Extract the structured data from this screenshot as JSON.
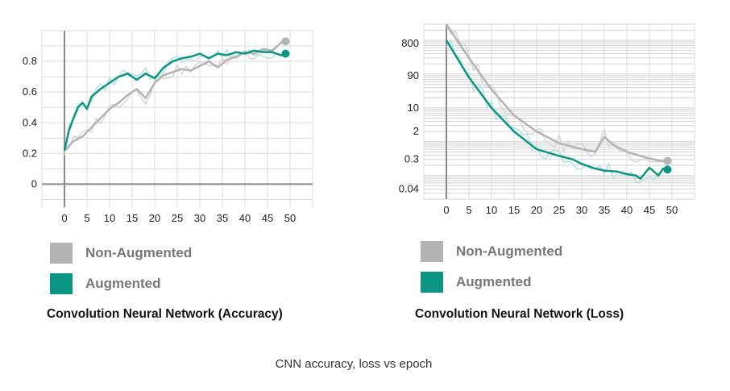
{
  "caption": "CNN accuracy, loss vs epoch",
  "colors": {
    "non_augmented": "#b3b3b3",
    "augmented": "#0b9683",
    "non_augmented_raw": "#d6d6d6",
    "augmented_raw": "#b6e2dc"
  },
  "chart_data": [
    {
      "type": "line",
      "title": "Convolution Neural Network (Accuracy)",
      "xlabel": "",
      "ylabel": "",
      "xlim": [
        -5,
        55
      ],
      "ylim": [
        -0.15,
        1.0
      ],
      "x_ticks": [
        0,
        5,
        10,
        15,
        20,
        25,
        30,
        35,
        40,
        45,
        50
      ],
      "y_ticks": [
        0,
        0.2,
        0.4,
        0.6,
        0.8
      ],
      "y_tick_labels": [
        "0",
        "0.2",
        "0.4",
        "0.6",
        "0.8"
      ],
      "x_tick_labels": [
        "0",
        "5",
        "10",
        "15",
        "20",
        "25",
        "30",
        "35",
        "40",
        "45",
        "50"
      ],
      "grid": true,
      "legend": [
        "Non-Augmented",
        "Augmented"
      ],
      "legend_position": "below",
      "series": [
        {
          "name": "Non-Augmented",
          "x": [
            0,
            2,
            4,
            6,
            8,
            10,
            12,
            14,
            16,
            18,
            20,
            22,
            24,
            26,
            28,
            30,
            32,
            34,
            36,
            38,
            40,
            42,
            44,
            46,
            48,
            49
          ],
          "values": [
            0.22,
            0.28,
            0.31,
            0.37,
            0.43,
            0.49,
            0.53,
            0.58,
            0.62,
            0.56,
            0.66,
            0.71,
            0.73,
            0.75,
            0.74,
            0.77,
            0.8,
            0.76,
            0.81,
            0.83,
            0.86,
            0.85,
            0.88,
            0.87,
            0.92,
            0.93
          ]
        },
        {
          "name": "Augmented",
          "x": [
            0,
            1,
            2,
            3,
            4,
            5,
            6,
            8,
            10,
            12,
            14,
            16,
            18,
            20,
            22,
            24,
            26,
            28,
            30,
            32,
            34,
            36,
            38,
            40,
            42,
            44,
            46,
            48,
            49
          ],
          "values": [
            0.22,
            0.35,
            0.43,
            0.5,
            0.53,
            0.49,
            0.57,
            0.62,
            0.66,
            0.7,
            0.72,
            0.68,
            0.72,
            0.69,
            0.76,
            0.8,
            0.82,
            0.83,
            0.85,
            0.82,
            0.85,
            0.84,
            0.86,
            0.85,
            0.87,
            0.86,
            0.86,
            0.84,
            0.85
          ]
        }
      ]
    },
    {
      "type": "line",
      "title": "Convolution Neural Network (Loss)",
      "xlabel": "",
      "ylabel": "",
      "y_scale": "log",
      "xlim": [
        -5,
        55
      ],
      "ylim": [
        0.02,
        3000
      ],
      "x_ticks": [
        0,
        5,
        10,
        15,
        20,
        25,
        30,
        35,
        40,
        45,
        50
      ],
      "x_tick_labels": [
        "0",
        "5",
        "10",
        "15",
        "20",
        "25",
        "30",
        "35",
        "40",
        "45",
        "50"
      ],
      "y_ticks": [
        800,
        90,
        10,
        2,
        0.3,
        0.04
      ],
      "y_tick_labels": [
        "800",
        "90",
        "10",
        "2",
        "0.3",
        "0.04"
      ],
      "grid": true,
      "legend": [
        "Non-Augmented",
        "Augmented"
      ],
      "legend_position": "below",
      "series": [
        {
          "name": "Non-Augmented",
          "x": [
            0,
            5,
            10,
            15,
            20,
            25,
            30,
            33,
            35,
            37,
            40,
            45,
            48,
            49
          ],
          "values": [
            3000,
            300,
            35,
            6,
            2.0,
            0.9,
            0.6,
            0.5,
            1.4,
            0.8,
            0.5,
            0.32,
            0.26,
            0.27
          ]
        },
        {
          "name": "Augmented",
          "x": [
            0,
            5,
            10,
            15,
            20,
            25,
            28,
            30,
            33,
            35,
            38,
            40,
            42,
            43,
            45,
            47,
            48,
            49
          ],
          "values": [
            1000,
            80,
            10,
            2.0,
            0.6,
            0.38,
            0.3,
            0.22,
            0.16,
            0.14,
            0.13,
            0.11,
            0.1,
            0.08,
            0.17,
            0.1,
            0.16,
            0.15
          ]
        }
      ]
    }
  ]
}
